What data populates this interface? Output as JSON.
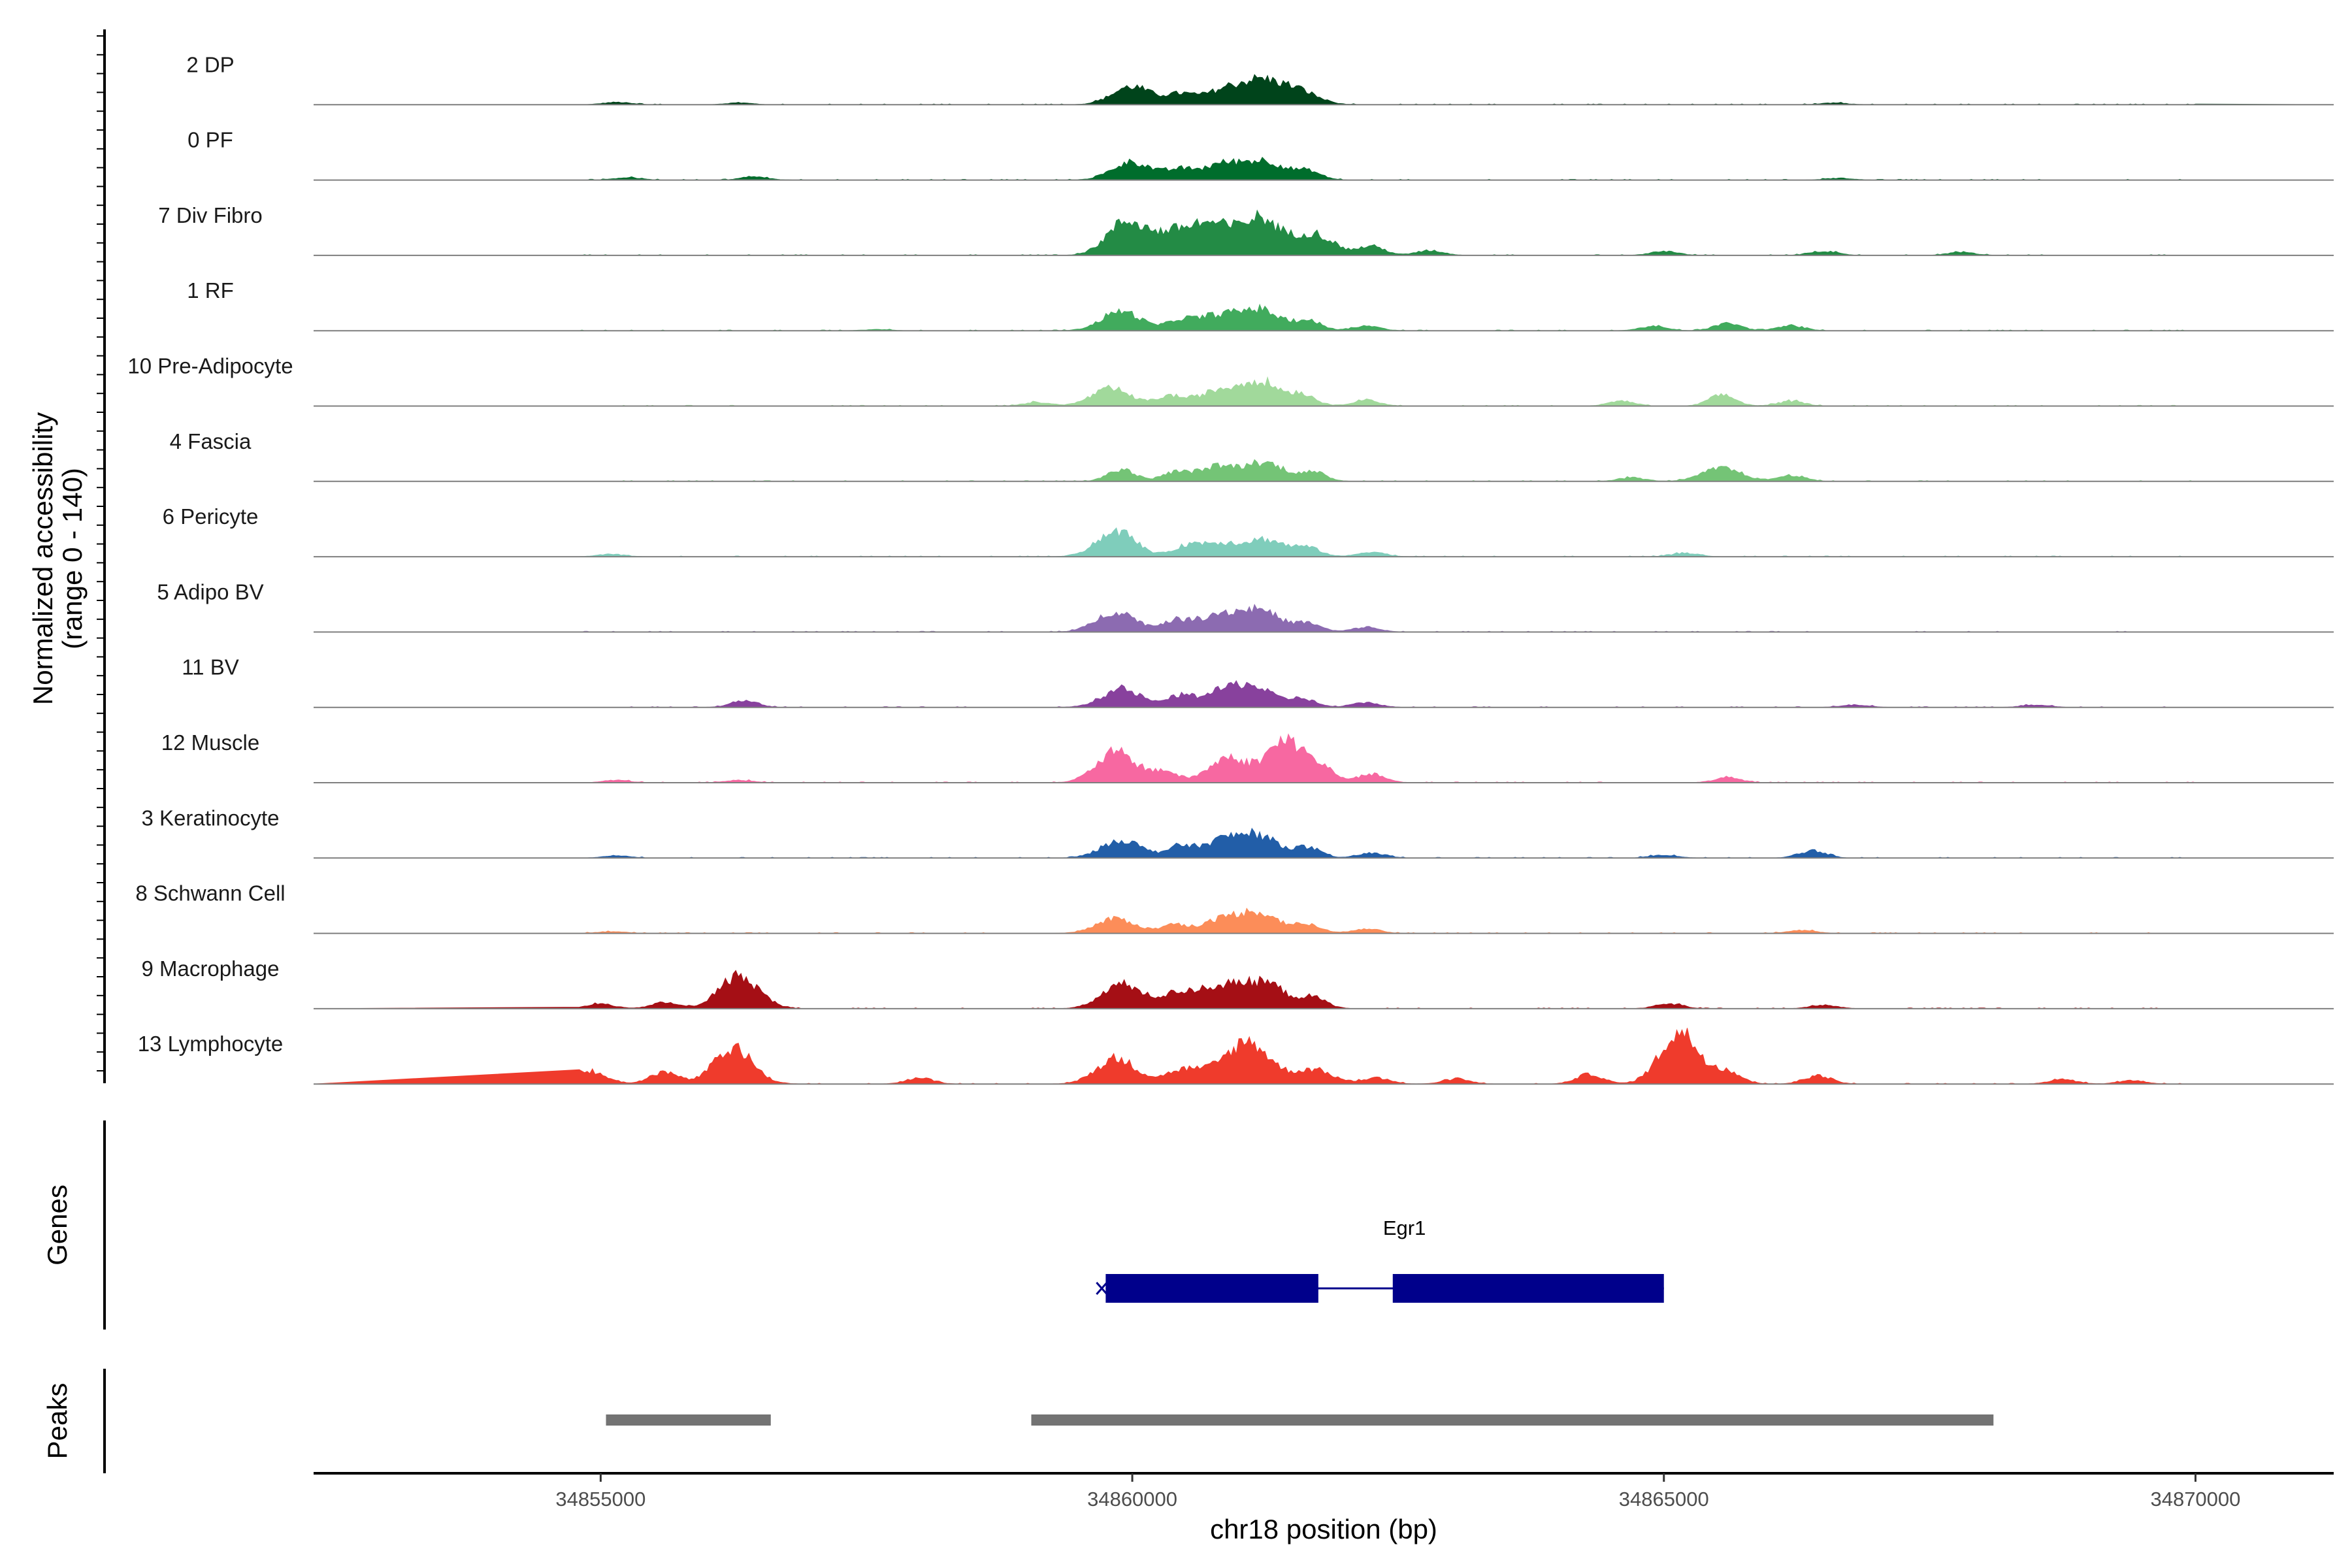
{
  "chart_data": {
    "type": "area",
    "ylabel": "Normalized accessibility",
    "ylabel_range": "(range 0 - 140)",
    "ylim": [
      0,
      140
    ],
    "xlabel": "chr18 position (bp)",
    "xlim": [
      34852300,
      34871300
    ],
    "x_ticks": [
      {
        "value": 34855000,
        "label": "34855000"
      },
      {
        "value": 34860000,
        "label": "34860000"
      },
      {
        "value": 34865000,
        "label": "34865000"
      },
      {
        "value": 34870000,
        "label": "34870000"
      }
    ],
    "tracks": [
      {
        "name": "2 DP",
        "color": "#00441b",
        "peaks": [
          [
            34860000,
            30
          ],
          [
            34860450,
            16
          ],
          [
            34860850,
            22
          ],
          [
            34861200,
            36
          ],
          [
            34861550,
            23
          ],
          [
            34855150,
            4
          ],
          [
            34856300,
            3
          ],
          [
            34866600,
            3
          ]
        ]
      },
      {
        "name": "0 PF",
        "color": "#006d2c",
        "peaks": [
          [
            34860000,
            30
          ],
          [
            34860450,
            16
          ],
          [
            34860850,
            26
          ],
          [
            34861250,
            30
          ],
          [
            34861650,
            14
          ],
          [
            34855250,
            4
          ],
          [
            34856450,
            5
          ],
          [
            34866650,
            3
          ]
        ]
      },
      {
        "name": "7 Div Fibro",
        "color": "#238b45",
        "peaks": [
          [
            34859950,
            56
          ],
          [
            34860400,
            34
          ],
          [
            34860750,
            46
          ],
          [
            34861200,
            60
          ],
          [
            34861700,
            36
          ],
          [
            34862250,
            15
          ],
          [
            34862800,
            8
          ],
          [
            34865000,
            7
          ],
          [
            34866500,
            7
          ],
          [
            34867800,
            5
          ]
        ]
      },
      {
        "name": "1 RF",
        "color": "#41ab5d",
        "peaks": [
          [
            34859900,
            32
          ],
          [
            34860450,
            16
          ],
          [
            34860800,
            24
          ],
          [
            34861200,
            34
          ],
          [
            34861650,
            16
          ],
          [
            34862200,
            8
          ],
          [
            34865600,
            12
          ],
          [
            34866200,
            8
          ],
          [
            34864900,
            7
          ],
          [
            34857600,
            2
          ]
        ]
      },
      {
        "name": "10 Pre-Adipocyte",
        "color": "#a1d99b",
        "peaks": [
          [
            34859800,
            28
          ],
          [
            34860350,
            16
          ],
          [
            34860800,
            24
          ],
          [
            34861200,
            40
          ],
          [
            34861600,
            18
          ],
          [
            34862200,
            10
          ],
          [
            34864600,
            8
          ],
          [
            34865550,
            18
          ],
          [
            34866200,
            8
          ],
          [
            34859100,
            6
          ]
        ]
      },
      {
        "name": "4 Fascia",
        "color": "#74c476",
        "peaks": [
          [
            34859900,
            20
          ],
          [
            34860400,
            14
          ],
          [
            34860800,
            24
          ],
          [
            34861250,
            30
          ],
          [
            34861700,
            14
          ],
          [
            34865550,
            22
          ],
          [
            34866200,
            10
          ],
          [
            34864700,
            6
          ]
        ]
      },
      {
        "name": "6 Pericyte",
        "color": "#7fcdbb",
        "peaks": [
          [
            34859850,
            42
          ],
          [
            34860500,
            14
          ],
          [
            34860800,
            22
          ],
          [
            34861250,
            28
          ],
          [
            34861650,
            14
          ],
          [
            34862250,
            8
          ],
          [
            34865200,
            6
          ],
          [
            34855100,
            4
          ]
        ]
      },
      {
        "name": "5 Adipo BV",
        "color": "#8c6bb1",
        "peaks": [
          [
            34859850,
            34
          ],
          [
            34860400,
            18
          ],
          [
            34860800,
            28
          ],
          [
            34861200,
            36
          ],
          [
            34861650,
            14
          ],
          [
            34862200,
            8
          ],
          [
            34853500,
            4
          ]
        ]
      },
      {
        "name": "11 BV",
        "color": "#88419d",
        "peaks": [
          [
            34859900,
            30
          ],
          [
            34860450,
            18
          ],
          [
            34860850,
            24
          ],
          [
            34861150,
            30
          ],
          [
            34861600,
            14
          ],
          [
            34862200,
            8
          ],
          [
            34856350,
            10
          ],
          [
            34853850,
            6
          ],
          [
            34866800,
            4
          ],
          [
            34868500,
            4
          ]
        ]
      },
      {
        "name": "12 Muscle",
        "color": "#f768a1",
        "peaks": [
          [
            34859850,
            50
          ],
          [
            34860300,
            18
          ],
          [
            34860900,
            40
          ],
          [
            34861450,
            70
          ],
          [
            34861800,
            18
          ],
          [
            34862250,
            14
          ],
          [
            34865600,
            8
          ],
          [
            34855150,
            4
          ],
          [
            34856300,
            4
          ]
        ]
      },
      {
        "name": "3 Keratinocyte",
        "color": "#225ea8",
        "peaks": [
          [
            34859900,
            30
          ],
          [
            34860450,
            18
          ],
          [
            34860850,
            28
          ],
          [
            34861200,
            34
          ],
          [
            34861650,
            16
          ],
          [
            34862250,
            8
          ],
          [
            34866400,
            12
          ],
          [
            34865000,
            5
          ],
          [
            34855150,
            4
          ]
        ]
      },
      {
        "name": "8 Schwann Cell",
        "color": "#fc8d59",
        "peaks": [
          [
            34859850,
            24
          ],
          [
            34860400,
            14
          ],
          [
            34860850,
            22
          ],
          [
            34861200,
            32
          ],
          [
            34861650,
            14
          ],
          [
            34862200,
            8
          ],
          [
            34866300,
            5
          ],
          [
            34855100,
            3
          ]
        ]
      },
      {
        "name": "9 Macrophage",
        "color": "#a50f15",
        "peaks": [
          [
            34856300,
            54
          ],
          [
            34855000,
            8
          ],
          [
            34855600,
            10
          ],
          [
            34859900,
            40
          ],
          [
            34860450,
            26
          ],
          [
            34860850,
            34
          ],
          [
            34861250,
            42
          ],
          [
            34861700,
            18
          ],
          [
            34865050,
            8
          ],
          [
            34866500,
            6
          ]
        ]
      },
      {
        "name": "13 Lymphocyte",
        "color": "#ef3b2c",
        "peaks": [
          [
            34856250,
            58
          ],
          [
            34855600,
            20
          ],
          [
            34854850,
            22
          ],
          [
            34859850,
            42
          ],
          [
            34860500,
            24
          ],
          [
            34860950,
            30
          ],
          [
            34861150,
            50
          ],
          [
            34861700,
            24
          ],
          [
            34862300,
            10
          ],
          [
            34864300,
            16
          ],
          [
            34865150,
            85
          ],
          [
            34865600,
            20
          ],
          [
            34866450,
            14
          ],
          [
            34863050,
            8
          ],
          [
            34868750,
            8
          ],
          [
            34869400,
            6
          ],
          [
            34858000,
            10
          ]
        ]
      }
    ],
    "genes": {
      "label": "Genes",
      "items": [
        {
          "name": "Egr1",
          "strand": "+",
          "start": 34859750,
          "end": 34865000,
          "exons": [
            [
              34859750,
              34861750
            ],
            [
              34862450,
              34865000
            ]
          ],
          "color": "#00008b"
        }
      ]
    },
    "peaks": {
      "label": "Peaks",
      "color": "#737373",
      "intervals": [
        [
          34855050,
          34856600
        ],
        [
          34859050,
          34868100
        ]
      ]
    }
  }
}
